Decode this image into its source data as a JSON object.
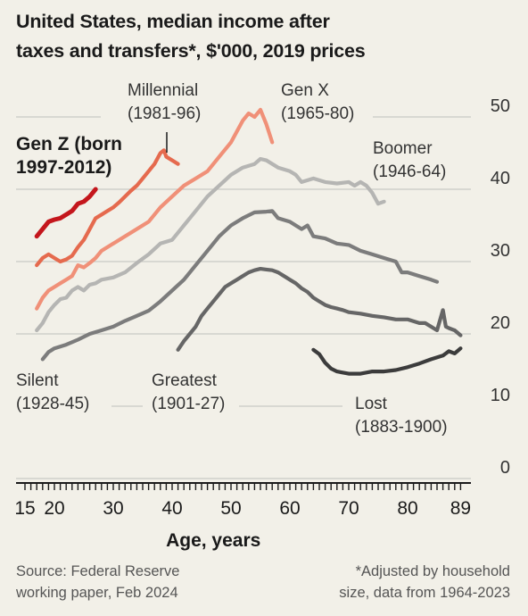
{
  "title": "United States, median income after\ntaxes and transfers*, $'000, 2019 prices",
  "source": "Source: Federal Reserve\nworking paper, Feb 2024",
  "footnote": "*Adjusted by household\nsize, data from 1964-2023",
  "chart_data": {
    "type": "line",
    "title": "United States, median income after taxes and transfers*, $'000, 2019 prices",
    "xlabel": "Age, years",
    "ylabel": "",
    "xlim": [
      15,
      89
    ],
    "ylim": [
      0,
      50
    ],
    "x_ticks": [
      15,
      20,
      30,
      40,
      50,
      60,
      70,
      80,
      89
    ],
    "y_ticks": [
      0,
      10,
      20,
      30,
      40,
      50
    ],
    "grid": "horizontal",
    "series": [
      {
        "name": "Lost (1883-1900)",
        "label_lines": [
          "Lost",
          "(1883-1900)"
        ],
        "color": "#3c3c3c",
        "bold": false,
        "points": [
          [
            64,
            17.8
          ],
          [
            65,
            17.2
          ],
          [
            66,
            16.0
          ],
          [
            67,
            15.2
          ],
          [
            68,
            14.8
          ],
          [
            70,
            14.5
          ],
          [
            72,
            14.5
          ],
          [
            74,
            14.8
          ],
          [
            76,
            14.8
          ],
          [
            78,
            15.0
          ],
          [
            80,
            15.4
          ],
          [
            82,
            15.9
          ],
          [
            84,
            16.5
          ],
          [
            86,
            17.0
          ],
          [
            87,
            17.6
          ],
          [
            88,
            17.3
          ],
          [
            89,
            18.0
          ]
        ]
      },
      {
        "name": "Greatest (1901-27)",
        "label_lines": [
          "Greatest",
          "(1901-27)"
        ],
        "color": "#666666",
        "bold": false,
        "points": [
          [
            41,
            17.8
          ],
          [
            42,
            19.0
          ],
          [
            43,
            20.0
          ],
          [
            44,
            21.0
          ],
          [
            45,
            22.5
          ],
          [
            46,
            23.5
          ],
          [
            47,
            24.5
          ],
          [
            48,
            25.5
          ],
          [
            49,
            26.5
          ],
          [
            50,
            27.0
          ],
          [
            51,
            27.5
          ],
          [
            52,
            28.0
          ],
          [
            53,
            28.5
          ],
          [
            54,
            28.8
          ],
          [
            55,
            29.0
          ],
          [
            56,
            28.9
          ],
          [
            57,
            28.8
          ],
          [
            58,
            28.5
          ],
          [
            59,
            28.0
          ],
          [
            60,
            27.5
          ],
          [
            61,
            27.0
          ],
          [
            62,
            26.3
          ],
          [
            63,
            25.8
          ],
          [
            64,
            25.0
          ],
          [
            65,
            24.5
          ],
          [
            66,
            24.0
          ],
          [
            67,
            23.7
          ],
          [
            68,
            23.5
          ],
          [
            69,
            23.3
          ],
          [
            70,
            23.0
          ],
          [
            72,
            22.8
          ],
          [
            74,
            22.5
          ],
          [
            76,
            22.3
          ],
          [
            78,
            22.0
          ],
          [
            80,
            22.0
          ],
          [
            82,
            21.5
          ],
          [
            83,
            21.5
          ],
          [
            84,
            21.0
          ],
          [
            85,
            20.5
          ],
          [
            86,
            23.3
          ],
          [
            86.5,
            21.0
          ],
          [
            87,
            20.8
          ],
          [
            88,
            20.5
          ],
          [
            89,
            19.8
          ]
        ]
      },
      {
        "name": "Silent (1928-45)",
        "label_lines": [
          "Silent",
          "(1928-45)"
        ],
        "color": "#7c7c7c",
        "bold": false,
        "points": [
          [
            18,
            16.5
          ],
          [
            19,
            17.5
          ],
          [
            20,
            18.0
          ],
          [
            22,
            18.5
          ],
          [
            24,
            19.2
          ],
          [
            26,
            20.0
          ],
          [
            28,
            20.5
          ],
          [
            30,
            21.0
          ],
          [
            32,
            21.8
          ],
          [
            34,
            22.5
          ],
          [
            36,
            23.2
          ],
          [
            38,
            24.5
          ],
          [
            40,
            26.0
          ],
          [
            42,
            27.5
          ],
          [
            44,
            29.5
          ],
          [
            46,
            31.5
          ],
          [
            48,
            33.5
          ],
          [
            50,
            35.0
          ],
          [
            52,
            36.0
          ],
          [
            54,
            36.8
          ],
          [
            56,
            36.9
          ],
          [
            57,
            37.0
          ],
          [
            58,
            36.0
          ],
          [
            60,
            35.5
          ],
          [
            62,
            34.5
          ],
          [
            63,
            35.0
          ],
          [
            64,
            33.5
          ],
          [
            66,
            33.2
          ],
          [
            68,
            32.5
          ],
          [
            70,
            32.3
          ],
          [
            72,
            31.5
          ],
          [
            74,
            31.0
          ],
          [
            76,
            30.5
          ],
          [
            78,
            30.0
          ],
          [
            79,
            28.5
          ],
          [
            80,
            28.5
          ],
          [
            82,
            28.0
          ],
          [
            84,
            27.5
          ],
          [
            85,
            27.2
          ]
        ]
      },
      {
        "name": "Boomer (1946-64)",
        "label_lines": [
          "Boomer",
          "(1946-64)"
        ],
        "color": "#b5b5b3",
        "bold": false,
        "points": [
          [
            17,
            20.5
          ],
          [
            18,
            21.5
          ],
          [
            19,
            23.0
          ],
          [
            20,
            24.0
          ],
          [
            21,
            24.8
          ],
          [
            22,
            25.0
          ],
          [
            23,
            26.0
          ],
          [
            24,
            26.5
          ],
          [
            25,
            26.0
          ],
          [
            26,
            26.8
          ],
          [
            27,
            27.0
          ],
          [
            28,
            27.5
          ],
          [
            30,
            27.8
          ],
          [
            32,
            28.5
          ],
          [
            34,
            29.8
          ],
          [
            36,
            31.0
          ],
          [
            38,
            32.5
          ],
          [
            40,
            33.0
          ],
          [
            42,
            35.0
          ],
          [
            44,
            37.0
          ],
          [
            46,
            39.0
          ],
          [
            48,
            40.5
          ],
          [
            50,
            42.0
          ],
          [
            52,
            43.0
          ],
          [
            54,
            43.5
          ],
          [
            55,
            44.2
          ],
          [
            56,
            44.0
          ],
          [
            58,
            43.0
          ],
          [
            60,
            42.5
          ],
          [
            61,
            42.0
          ],
          [
            62,
            41.0
          ],
          [
            64,
            41.5
          ],
          [
            66,
            41.0
          ],
          [
            68,
            40.8
          ],
          [
            70,
            41.0
          ],
          [
            71,
            40.5
          ],
          [
            72,
            41.0
          ],
          [
            73,
            40.5
          ],
          [
            74,
            39.5
          ],
          [
            75,
            38.0
          ],
          [
            76,
            38.3
          ]
        ]
      },
      {
        "name": "Gen X (1965-80)",
        "label_lines": [
          "Gen X",
          "(1965-80)"
        ],
        "color": "#f09078",
        "bold": false,
        "points": [
          [
            17,
            23.5
          ],
          [
            18,
            25.0
          ],
          [
            19,
            26.0
          ],
          [
            20,
            26.5
          ],
          [
            21,
            27.0
          ],
          [
            22,
            27.5
          ],
          [
            23,
            28.0
          ],
          [
            24,
            29.5
          ],
          [
            25,
            29.2
          ],
          [
            26,
            29.8
          ],
          [
            27,
            30.5
          ],
          [
            28,
            31.5
          ],
          [
            30,
            32.5
          ],
          [
            32,
            33.5
          ],
          [
            34,
            34.5
          ],
          [
            36,
            35.5
          ],
          [
            38,
            37.5
          ],
          [
            40,
            39.0
          ],
          [
            42,
            40.5
          ],
          [
            44,
            41.5
          ],
          [
            46,
            42.5
          ],
          [
            48,
            44.5
          ],
          [
            50,
            46.5
          ],
          [
            51,
            48.0
          ],
          [
            52,
            49.5
          ],
          [
            53,
            50.5
          ],
          [
            54,
            50.0
          ],
          [
            55,
            51.0
          ],
          [
            56,
            49.0
          ],
          [
            57,
            46.5
          ]
        ]
      },
      {
        "name": "Millennial (1981-96)",
        "label_lines": [
          "Millennial",
          "(1981-96)"
        ],
        "color": "#e56a4e",
        "bold": false,
        "points": [
          [
            17,
            29.5
          ],
          [
            18,
            30.5
          ],
          [
            19,
            31.0
          ],
          [
            20,
            30.5
          ],
          [
            21,
            30.0
          ],
          [
            22,
            30.3
          ],
          [
            23,
            30.8
          ],
          [
            24,
            32.0
          ],
          [
            25,
            33.0
          ],
          [
            26,
            34.5
          ],
          [
            27,
            36.0
          ],
          [
            28,
            36.5
          ],
          [
            29,
            37.0
          ],
          [
            30,
            37.5
          ],
          [
            31,
            38.2
          ],
          [
            32,
            39.0
          ],
          [
            33,
            39.8
          ],
          [
            34,
            40.5
          ],
          [
            35,
            41.5
          ],
          [
            36,
            42.5
          ],
          [
            37,
            43.5
          ],
          [
            38,
            45.0
          ],
          [
            38.6,
            45.4
          ],
          [
            39,
            44.5
          ],
          [
            40,
            44.0
          ],
          [
            41,
            43.5
          ]
        ]
      },
      {
        "name": "Gen Z (born 1997-2012)",
        "label_lines": [
          "Gen Z (born",
          "1997-2012)"
        ],
        "color": "#c4161c",
        "bold": true,
        "points": [
          [
            17,
            33.5
          ],
          [
            18,
            34.5
          ],
          [
            19,
            35.5
          ],
          [
            20,
            35.8
          ],
          [
            21,
            36.0
          ],
          [
            22,
            36.5
          ],
          [
            23,
            37.0
          ],
          [
            24,
            38.0
          ],
          [
            25,
            38.3
          ],
          [
            26,
            39.0
          ],
          [
            27,
            40.0
          ]
        ]
      }
    ]
  }
}
